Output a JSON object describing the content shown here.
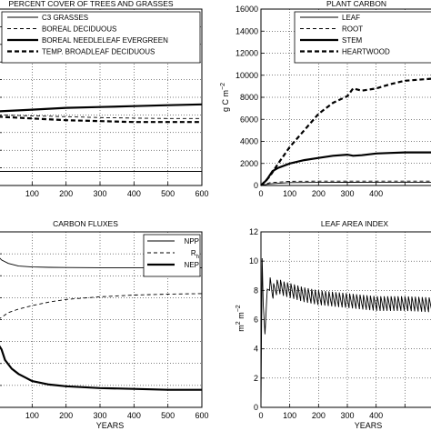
{
  "chart_data": [
    {
      "type": "line",
      "title": "PERCENT COVER OF TREES AND GRASSES",
      "xlabel": "",
      "ylabel": "",
      "xlim": [
        0,
        600
      ],
      "x_ticks": [
        "100",
        "200",
        "300",
        "400",
        "500",
        "600"
      ],
      "y_ticks": [],
      "legend_position": "top-right",
      "series": [
        {
          "name": "C3 GRASSES",
          "style": "thin-solid",
          "x": [
            0,
            600
          ],
          "y": [
            0.08,
            0.08
          ]
        },
        {
          "name": "BOREAL DECIDUOUS",
          "style": "thin-dashed",
          "x": [
            0,
            100,
            200,
            300,
            400,
            500,
            600
          ],
          "y": [
            0.4,
            0.395,
            0.39,
            0.385,
            0.382,
            0.38,
            0.38
          ]
        },
        {
          "name": "BOREAL NEEDLELEAF EVERGREEN",
          "style": "thick-solid",
          "x": [
            0,
            100,
            200,
            300,
            400,
            500,
            600
          ],
          "y": [
            0.42,
            0.43,
            0.44,
            0.445,
            0.45,
            0.455,
            0.46
          ]
        },
        {
          "name": "TEMP. BROADLEAF DECIDUOUS",
          "style": "thick-dashed",
          "x": [
            0,
            100,
            200,
            300,
            400,
            500,
            600
          ],
          "y": [
            0.39,
            0.38,
            0.37,
            0.365,
            0.36,
            0.36,
            0.36
          ]
        }
      ]
    },
    {
      "type": "line",
      "title": "PLANT CARBON",
      "ylabel": "g C m",
      "ylabel_sup": "−2",
      "xlim": [
        0,
        600
      ],
      "ylim": [
        0,
        16000
      ],
      "x_ticks": [
        "0",
        "100",
        "200",
        "300",
        "400"
      ],
      "y_ticks": [
        "0",
        "2000",
        "4000",
        "6000",
        "8000",
        "10000",
        "12000",
        "14000",
        "16000"
      ],
      "legend_position": "top-right",
      "series": [
        {
          "name": "LEAF",
          "style": "thin-solid",
          "x": [
            0,
            30,
            100,
            200,
            300,
            400,
            600
          ],
          "y": [
            0,
            150,
            260,
            280,
            290,
            300,
            300
          ]
        },
        {
          "name": "ROOT",
          "style": "thin-dashed",
          "x": [
            0,
            30,
            100,
            200,
            300,
            400,
            600
          ],
          "y": [
            0,
            250,
            380,
            400,
            400,
            400,
            400
          ]
        },
        {
          "name": "STEM",
          "style": "thick-solid",
          "x": [
            0,
            20,
            40,
            60,
            100,
            150,
            200,
            250,
            300,
            320,
            350,
            400,
            450,
            500,
            600
          ],
          "y": [
            0,
            500,
            1300,
            1600,
            2000,
            2300,
            2500,
            2700,
            2800,
            2700,
            2750,
            2900,
            2950,
            3000,
            3000
          ]
        },
        {
          "name": "HEARTWOOD",
          "style": "thick-dashed",
          "x": [
            0,
            30,
            60,
            100,
            150,
            200,
            250,
            300,
            320,
            350,
            400,
            450,
            500,
            600
          ],
          "y": [
            0,
            800,
            2000,
            3500,
            5000,
            6500,
            7500,
            8100,
            8800,
            8600,
            8800,
            9200,
            9500,
            9700
          ]
        }
      ]
    },
    {
      "type": "line",
      "title": "CARBON FLUXES",
      "xlabel": "YEARS",
      "ylabel": "",
      "xlim": [
        0,
        600
      ],
      "x_ticks": [
        "100",
        "200",
        "300",
        "400",
        "500",
        "600"
      ],
      "y_ticks": [],
      "legend_position": "top-right",
      "series": [
        {
          "name": "NPP",
          "style": "thin-solid",
          "x": [
            0,
            10,
            30,
            60,
            100,
            150,
            200,
            300,
            400,
            500,
            600
          ],
          "y": [
            0.86,
            0.84,
            0.82,
            0.805,
            0.8,
            0.798,
            0.797,
            0.796,
            0.796,
            0.796,
            0.796
          ]
        },
        {
          "name": "R",
          "name_sub": "h",
          "style": "thin-dashed",
          "x": [
            0,
            30,
            60,
            100,
            150,
            200,
            300,
            400,
            500,
            600
          ],
          "y": [
            0.5,
            0.54,
            0.56,
            0.58,
            0.6,
            0.615,
            0.63,
            0.64,
            0.645,
            0.648
          ]
        },
        {
          "name": "NEP",
          "style": "thick-solid",
          "x": [
            0,
            10,
            20,
            40,
            60,
            80,
            100,
            150,
            200,
            300,
            400,
            500,
            600
          ],
          "y": [
            0.36,
            0.33,
            0.27,
            0.22,
            0.19,
            0.17,
            0.15,
            0.13,
            0.12,
            0.11,
            0.105,
            0.1,
            0.1
          ]
        }
      ]
    },
    {
      "type": "line",
      "title": "LEAF AREA INDEX",
      "xlabel": "YEARS",
      "ylabel": "m",
      "ylabel_sup": "2",
      "ylabel2": " m",
      "ylabel2_sup": "−2",
      "xlim": [
        0,
        600
      ],
      "ylim": [
        0,
        12
      ],
      "x_ticks": [
        "0",
        "100",
        "200",
        "300",
        "400"
      ],
      "y_ticks": [
        "0",
        "2",
        "4",
        "6",
        "8",
        "10",
        "12"
      ],
      "series": [
        {
          "name": "",
          "style": "thin-solid",
          "pattern": "sawtooth",
          "x": [
            0,
            4,
            8,
            14,
            20,
            30,
            40,
            60,
            80,
            100,
            150,
            200,
            300,
            400,
            500,
            600
          ],
          "y": [
            0,
            10.2,
            7.0,
            5.0,
            7.4,
            8.3,
            7.7,
            8.1,
            7.9,
            7.8,
            7.5,
            7.3,
            7.1,
            6.9,
            6.9,
            6.8
          ]
        }
      ]
    }
  ]
}
